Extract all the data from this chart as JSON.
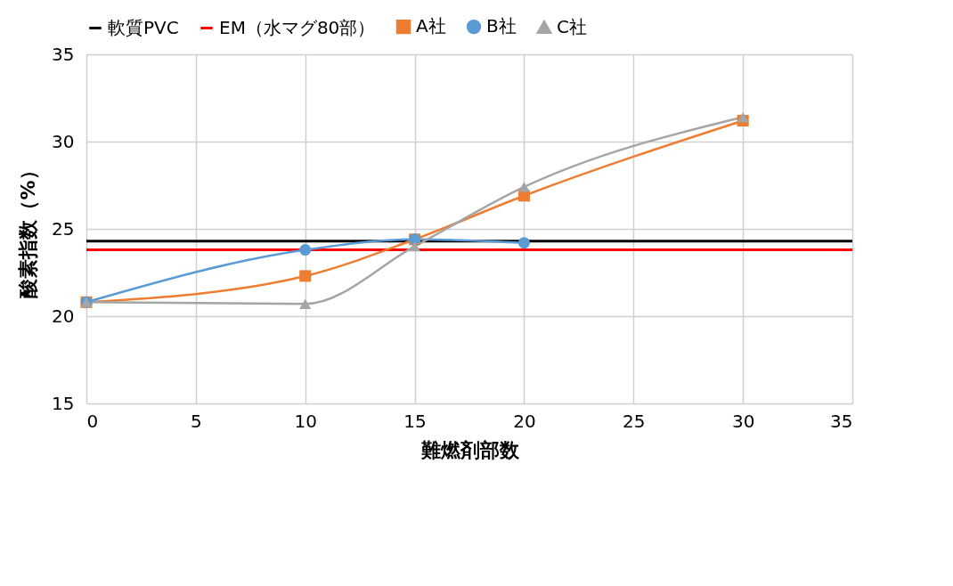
{
  "chart_data": {
    "type": "line",
    "xlabel": "難燃剤部数",
    "ylabel": "酸素指数（%）",
    "xlim": [
      0,
      35
    ],
    "xticks": [
      0,
      5,
      10,
      15,
      20,
      25,
      30,
      35
    ],
    "ylim": [
      15,
      35
    ],
    "yticks": [
      15,
      20,
      25,
      30,
      35
    ],
    "grid": true,
    "legend": "top",
    "series": [
      {
        "name": "軟質PVC",
        "color": "#000000",
        "x": [
          0,
          35
        ],
        "values": [
          24.3,
          24.3
        ],
        "marker": "none"
      },
      {
        "name": "EM（水マグ80部）",
        "color": "#ff0000",
        "x": [
          0,
          35
        ],
        "values": [
          23.8,
          23.8
        ],
        "marker": "none"
      },
      {
        "name": "A社",
        "color": "#ed7d31",
        "x": [
          0,
          10,
          15,
          20,
          30
        ],
        "values": [
          20.8,
          22.3,
          24.4,
          26.9,
          31.2
        ],
        "marker": "square"
      },
      {
        "name": "B社",
        "color": "#5b9bd5",
        "x": [
          0,
          10,
          15,
          20
        ],
        "values": [
          20.8,
          23.8,
          24.4,
          24.2
        ],
        "marker": "circle"
      },
      {
        "name": "C社",
        "color": "#a5a5a5",
        "x": [
          0,
          10,
          15,
          20,
          30
        ],
        "values": [
          20.8,
          20.7,
          24.0,
          27.4,
          31.4
        ],
        "marker": "triangle"
      }
    ]
  }
}
